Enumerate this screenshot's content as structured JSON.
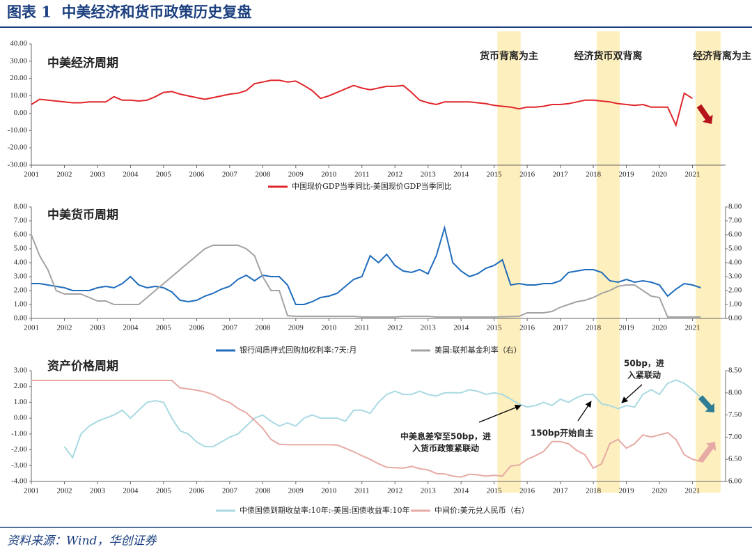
{
  "title": "图表 1  中美经济和货币政策历史复盘",
  "source": "资料来源：Wind，华创证券",
  "highlight_periods": [
    {
      "start": 2015.1,
      "end": 2015.8,
      "label": "货币背离为主"
    },
    {
      "start": 2018.1,
      "end": 2018.8,
      "label": "经济货币双背离"
    },
    {
      "start": 2021.1,
      "end": 2021.85,
      "label": "经济背离为主"
    }
  ],
  "chart_data": [
    {
      "type": "line",
      "title": "中美经济周期",
      "xlim": [
        2001,
        2022
      ],
      "xticks": [
        2001,
        2002,
        2003,
        2004,
        2005,
        2006,
        2007,
        2008,
        2009,
        2010,
        2011,
        2012,
        2013,
        2014,
        2015,
        2016,
        2017,
        2018,
        2019,
        2020,
        2021
      ],
      "ylim": [
        -30,
        40
      ],
      "yticks": [
        {
          "value": -30,
          "label": "-30.00"
        },
        {
          "value": -20,
          "label": "-20.00"
        },
        {
          "value": -10,
          "label": "-10.00"
        },
        {
          "value": 0,
          "label": "0.00"
        },
        {
          "value": 10,
          "label": "10.00"
        },
        {
          "value": 20,
          "label": "20.00"
        },
        {
          "value": 30,
          "label": "30.00"
        },
        {
          "value": 40,
          "label": "40.00"
        }
      ],
      "x": [
        2001,
        2001.25,
        2001.5,
        2001.75,
        2002,
        2002.25,
        2002.5,
        2002.75,
        2003,
        2003.25,
        2003.5,
        2003.75,
        2004,
        2004.25,
        2004.5,
        2004.75,
        2005,
        2005.25,
        2005.5,
        2005.75,
        2006,
        2006.25,
        2006.5,
        2006.75,
        2007,
        2007.25,
        2007.5,
        2007.75,
        2008,
        2008.25,
        2008.5,
        2008.75,
        2009,
        2009.25,
        2009.5,
        2009.75,
        2010,
        2010.25,
        2010.5,
        2010.75,
        2011,
        2011.25,
        2011.5,
        2011.75,
        2012,
        2012.25,
        2012.5,
        2012.75,
        2013,
        2013.25,
        2013.5,
        2013.75,
        2014,
        2014.25,
        2014.5,
        2014.75,
        2015,
        2015.25,
        2015.5,
        2015.75,
        2016,
        2016.25,
        2016.5,
        2016.75,
        2017,
        2017.25,
        2017.5,
        2017.75,
        2018,
        2018.25,
        2018.5,
        2018.75,
        2019,
        2019.25,
        2019.5,
        2019.75,
        2020,
        2020.25,
        2020.5,
        2020.75,
        2021
      ],
      "series": [
        {
          "name": "中国现价GDP当季同比-美国现价GDP当季同比",
          "color": "#e0262b",
          "values": [
            5,
            8,
            7.5,
            7,
            6.5,
            6,
            6,
            6.5,
            6.5,
            6.5,
            9.5,
            7.5,
            7.5,
            7,
            7.5,
            9.5,
            12,
            12.5,
            11,
            10,
            9,
            8,
            9,
            10,
            11,
            11.5,
            13,
            17,
            18,
            19,
            19,
            18,
            18.5,
            16,
            13,
            8.5,
            10,
            12,
            14,
            16,
            14.5,
            13.5,
            14.5,
            15.5,
            15.5,
            16,
            12,
            7.5,
            6,
            5,
            6.5,
            6.5,
            6.5,
            6.5,
            6,
            5.5,
            4.5,
            4,
            3.5,
            2.5,
            3.5,
            3.5,
            4,
            5,
            5,
            5.5,
            6.5,
            7.5,
            7.5,
            7,
            6.5,
            5.5,
            5,
            4.5,
            5,
            3.5,
            3.5,
            3.5,
            -7,
            11.5,
            8.5
          ]
        }
      ]
    },
    {
      "type": "line",
      "title": "中美货币周期",
      "xlim": [
        2001,
        2022
      ],
      "xticks": [
        2001,
        2002,
        2003,
        2004,
        2005,
        2006,
        2007,
        2008,
        2009,
        2010,
        2011,
        2012,
        2013,
        2014,
        2015,
        2016,
        2017,
        2018,
        2019,
        2020,
        2021
      ],
      "ylim": [
        0,
        8
      ],
      "yticks": [
        {
          "value": 0,
          "label": "0.00"
        },
        {
          "value": 1,
          "label": "1.00"
        },
        {
          "value": 2,
          "label": "2.00"
        },
        {
          "value": 3,
          "label": "3.00"
        },
        {
          "value": 4,
          "label": "4.00"
        },
        {
          "value": 5,
          "label": "5.00"
        },
        {
          "value": 6,
          "label": "6.00"
        },
        {
          "value": 7,
          "label": "7.00"
        },
        {
          "value": 8,
          "label": "8.00"
        }
      ],
      "y2lim": [
        0,
        8
      ],
      "y2ticks": [
        {
          "value": 0,
          "label": "0.00"
        },
        {
          "value": 1,
          "label": "1.00"
        },
        {
          "value": 2,
          "label": "2.00"
        },
        {
          "value": 3,
          "label": "3.00"
        },
        {
          "value": 4,
          "label": "4.00"
        },
        {
          "value": 5,
          "label": "5.00"
        },
        {
          "value": 6,
          "label": "6.00"
        },
        {
          "value": 7,
          "label": "7.00"
        },
        {
          "value": 8,
          "label": "8.00"
        }
      ],
      "x": [
        2001,
        2001.25,
        2001.5,
        2001.75,
        2002,
        2002.25,
        2002.5,
        2002.75,
        2003,
        2003.25,
        2003.5,
        2003.75,
        2004,
        2004.25,
        2004.5,
        2004.75,
        2005,
        2005.25,
        2005.5,
        2005.75,
        2006,
        2006.25,
        2006.5,
        2006.75,
        2007,
        2007.25,
        2007.5,
        2007.75,
        2008,
        2008.25,
        2008.5,
        2008.75,
        2009,
        2009.25,
        2009.5,
        2009.75,
        2010,
        2010.25,
        2010.5,
        2010.75,
        2011,
        2011.25,
        2011.5,
        2011.75,
        2012,
        2012.25,
        2012.5,
        2012.75,
        2013,
        2013.25,
        2013.5,
        2013.75,
        2014,
        2014.25,
        2014.5,
        2014.75,
        2015,
        2015.25,
        2015.5,
        2015.75,
        2016,
        2016.25,
        2016.5,
        2016.75,
        2017,
        2017.25,
        2017.5,
        2017.75,
        2018,
        2018.25,
        2018.5,
        2018.75,
        2019,
        2019.25,
        2019.5,
        2019.75,
        2020,
        2020.25,
        2020.5,
        2020.75,
        2021,
        2021.25
      ],
      "series": [
        {
          "name": "银行间质押式回购加权利率:7天:月",
          "color": "#1f6cbc",
          "values": [
            2.5,
            2.5,
            2.4,
            2.3,
            2.2,
            2.0,
            2.0,
            2.0,
            2.2,
            2.3,
            2.2,
            2.5,
            3.0,
            2.4,
            2.2,
            2.3,
            2.2,
            1.9,
            1.3,
            1.2,
            1.3,
            1.6,
            1.8,
            2.1,
            2.3,
            2.8,
            3.1,
            2.7,
            3.1,
            3.0,
            3.0,
            2.4,
            1.0,
            1.0,
            1.2,
            1.5,
            1.6,
            1.8,
            2.3,
            2.8,
            3.0,
            4.5,
            4.0,
            4.6,
            3.8,
            3.4,
            3.3,
            3.5,
            3.2,
            4.5,
            6.5,
            4.0,
            3.4,
            3.0,
            3.2,
            3.6,
            3.8,
            4.2,
            2.4,
            2.5,
            2.4,
            2.4,
            2.5,
            2.5,
            2.7,
            3.3,
            3.4,
            3.5,
            3.5,
            3.3,
            2.7,
            2.6,
            2.8,
            2.6,
            2.7,
            2.6,
            2.4,
            1.6,
            2.1,
            2.5,
            2.4,
            2.2
          ]
        },
        {
          "name": "美国:联邦基金利率（右）",
          "color": "#a3a3a3",
          "axis": "y2",
          "values": [
            6.0,
            4.5,
            3.5,
            2.0,
            1.75,
            1.75,
            1.75,
            1.5,
            1.25,
            1.25,
            1.0,
            1.0,
            1.0,
            1.0,
            1.5,
            2.0,
            2.5,
            3.0,
            3.5,
            4.0,
            4.5,
            5.0,
            5.25,
            5.25,
            5.25,
            5.25,
            5.0,
            4.5,
            3.0,
            2.0,
            2.0,
            0.2,
            0.15,
            0.15,
            0.15,
            0.15,
            0.15,
            0.15,
            0.15,
            0.15,
            0.1,
            0.1,
            0.1,
            0.1,
            0.1,
            0.15,
            0.15,
            0.15,
            0.15,
            0.1,
            0.1,
            0.1,
            0.1,
            0.1,
            0.1,
            0.1,
            0.1,
            0.12,
            0.14,
            0.15,
            0.4,
            0.4,
            0.4,
            0.5,
            0.8,
            1.0,
            1.2,
            1.3,
            1.5,
            1.8,
            2.0,
            2.3,
            2.4,
            2.4,
            2.0,
            1.6,
            1.5,
            0.1,
            0.1,
            0.1,
            0.1,
            0.1
          ]
        }
      ]
    },
    {
      "type": "line",
      "title": "资产价格周期",
      "xlim": [
        2001,
        2022
      ],
      "xticks": [
        2001,
        2002,
        2003,
        2004,
        2005,
        2006,
        2007,
        2008,
        2009,
        2010,
        2011,
        2012,
        2013,
        2014,
        2015,
        2016,
        2017,
        2018,
        2019,
        2020,
        2021
      ],
      "ylim": [
        -4,
        3
      ],
      "yticks": [
        {
          "value": -4,
          "label": "-4.00"
        },
        {
          "value": -3,
          "label": "-3.00"
        },
        {
          "value": -2,
          "label": "-2.00"
        },
        {
          "value": -1,
          "label": "-1.00"
        },
        {
          "value": 0,
          "label": "0.00"
        },
        {
          "value": 1,
          "label": "1.00"
        },
        {
          "value": 2,
          "label": "2.00"
        },
        {
          "value": 3,
          "label": "3.00"
        }
      ],
      "y2lim": [
        6,
        8.5
      ],
      "y2ticks": [
        {
          "value": 6,
          "label": "6.00"
        },
        {
          "value": 6.5,
          "label": "6.50"
        },
        {
          "value": 7,
          "label": "7.00"
        },
        {
          "value": 7.5,
          "label": "7.50"
        },
        {
          "value": 8,
          "label": "8.00"
        },
        {
          "value": 8.5,
          "label": "8.50"
        }
      ],
      "x": [
        2001,
        2001.25,
        2001.5,
        2001.75,
        2002,
        2002.25,
        2002.5,
        2002.75,
        2003,
        2003.25,
        2003.5,
        2003.75,
        2004,
        2004.25,
        2004.5,
        2004.75,
        2005,
        2005.25,
        2005.5,
        2005.75,
        2006,
        2006.25,
        2006.5,
        2006.75,
        2007,
        2007.25,
        2007.5,
        2007.75,
        2008,
        2008.25,
        2008.5,
        2008.75,
        2009,
        2009.25,
        2009.5,
        2009.75,
        2010,
        2010.25,
        2010.5,
        2010.75,
        2011,
        2011.25,
        2011.5,
        2011.75,
        2012,
        2012.25,
        2012.5,
        2012.75,
        2013,
        2013.25,
        2013.5,
        2013.75,
        2014,
        2014.25,
        2014.5,
        2014.75,
        2015,
        2015.25,
        2015.5,
        2015.75,
        2016,
        2016.25,
        2016.5,
        2016.75,
        2017,
        2017.25,
        2017.5,
        2017.75,
        2018,
        2018.25,
        2018.5,
        2018.75,
        2019,
        2019.25,
        2019.5,
        2019.75,
        2020,
        2020.25,
        2020.5,
        2020.75,
        2021,
        2021.25
      ],
      "series": [
        {
          "name": "中债国债到期收益率:10年:-美国:国债收益率:10年",
          "color": "#a9d9e2",
          "values": [
            null,
            null,
            null,
            null,
            -1.8,
            -2.5,
            -1.0,
            -0.5,
            -0.2,
            0.0,
            0.2,
            0.5,
            0.0,
            0.5,
            1.0,
            1.1,
            1.0,
            0.0,
            -0.8,
            -1.0,
            -1.5,
            -1.8,
            -1.8,
            -1.5,
            -1.2,
            -1.0,
            -0.5,
            0.0,
            0.2,
            -0.2,
            -0.5,
            -0.3,
            -0.5,
            0.0,
            0.2,
            0.0,
            0.0,
            0.0,
            -0.2,
            0.5,
            0.5,
            0.3,
            1.0,
            1.5,
            1.7,
            1.5,
            1.5,
            1.7,
            1.5,
            1.4,
            1.6,
            1.6,
            1.6,
            1.8,
            1.7,
            1.5,
            1.6,
            1.5,
            1.2,
            0.9,
            0.7,
            0.8,
            1.0,
            0.8,
            1.2,
            1.0,
            1.3,
            1.5,
            1.5,
            0.9,
            0.8,
            0.6,
            0.8,
            0.7,
            1.5,
            1.8,
            1.5,
            2.2,
            2.4,
            2.2,
            1.8,
            1.3
          ]
        },
        {
          "name": "中间价:美元兑人民币（右）",
          "color": "#e6aaa5",
          "axis": "y2",
          "values": [
            8.28,
            8.28,
            8.28,
            8.28,
            8.28,
            8.28,
            8.28,
            8.28,
            8.28,
            8.28,
            8.28,
            8.28,
            8.28,
            8.28,
            8.28,
            8.28,
            8.28,
            8.28,
            8.11,
            8.09,
            8.06,
            8.02,
            7.96,
            7.85,
            7.78,
            7.65,
            7.55,
            7.38,
            7.2,
            6.95,
            6.84,
            6.83,
            6.83,
            6.83,
            6.83,
            6.83,
            6.83,
            6.82,
            6.75,
            6.67,
            6.58,
            6.5,
            6.4,
            6.32,
            6.31,
            6.3,
            6.34,
            6.29,
            6.26,
            6.18,
            6.17,
            6.12,
            6.1,
            6.16,
            6.15,
            6.12,
            6.14,
            6.12,
            6.35,
            6.37,
            6.5,
            6.58,
            6.68,
            6.9,
            6.9,
            6.85,
            6.7,
            6.6,
            6.3,
            6.4,
            6.85,
            6.95,
            6.75,
            6.85,
            7.05,
            7.0,
            7.05,
            7.1,
            6.95,
            6.6,
            6.5,
            6.45
          ]
        }
      ],
      "annotations": [
        [
          "中美息差窄至50bp，进",
          "入货币政策紧联动"
        ],
        [
          "150bp开始自主"
        ],
        [
          "50bp，进",
          "入紧联动"
        ]
      ]
    }
  ]
}
